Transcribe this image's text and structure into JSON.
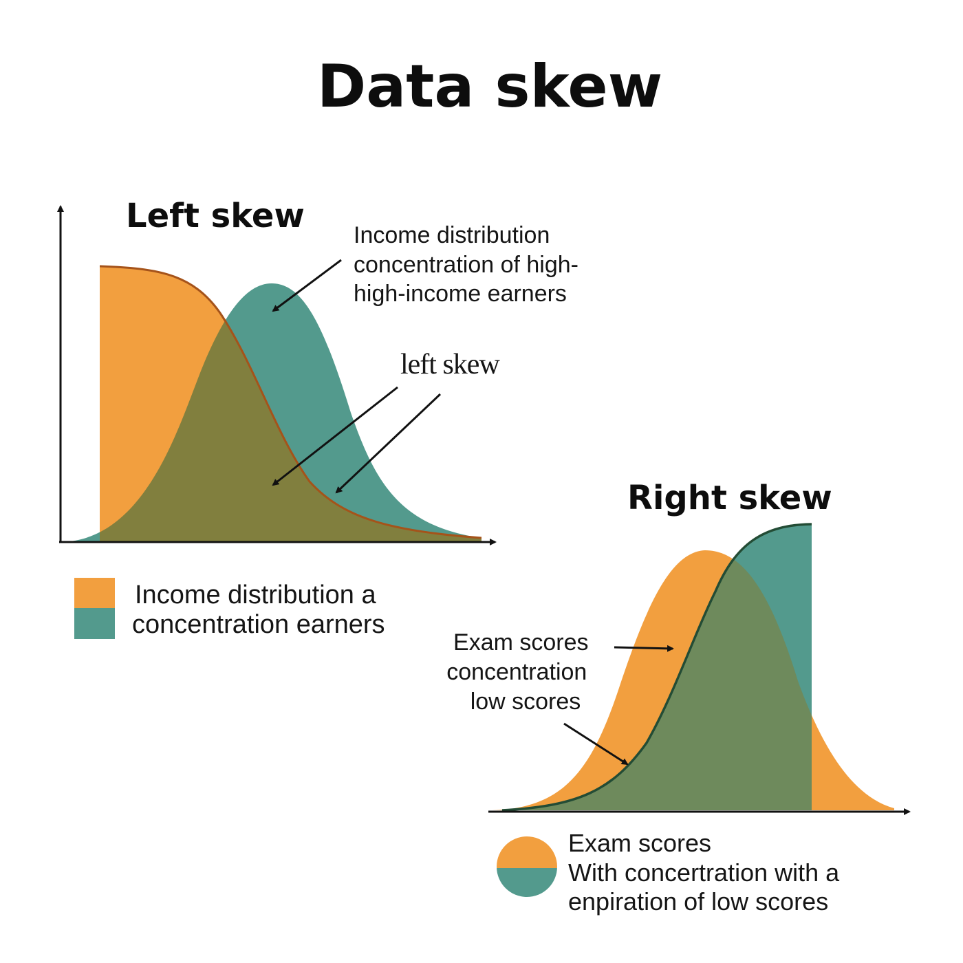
{
  "title": "Data skew",
  "colors": {
    "orange": "#F29F3F",
    "teal": "#539A8D",
    "overlap_left": "#817F3E",
    "overlap_right": "#6E8A5C",
    "outline_left": "#A5531A",
    "outline_right": "#234C35",
    "ink": "#111111"
  },
  "left_panel": {
    "heading": "Left skew",
    "annotation_top": [
      "Income distribution",
      "concentration of high-",
      "high-income earners"
    ],
    "annotation_mid": "left skew",
    "legend_lines": [
      "Income distribution a",
      "concentration earners"
    ]
  },
  "right_panel": {
    "heading": "Right skew",
    "annotation": [
      "Exam scores",
      "concentration",
      "low scores"
    ],
    "legend_lines": [
      "Exam scores",
      "With concertration with a",
      "enpiration of low scores"
    ]
  }
}
